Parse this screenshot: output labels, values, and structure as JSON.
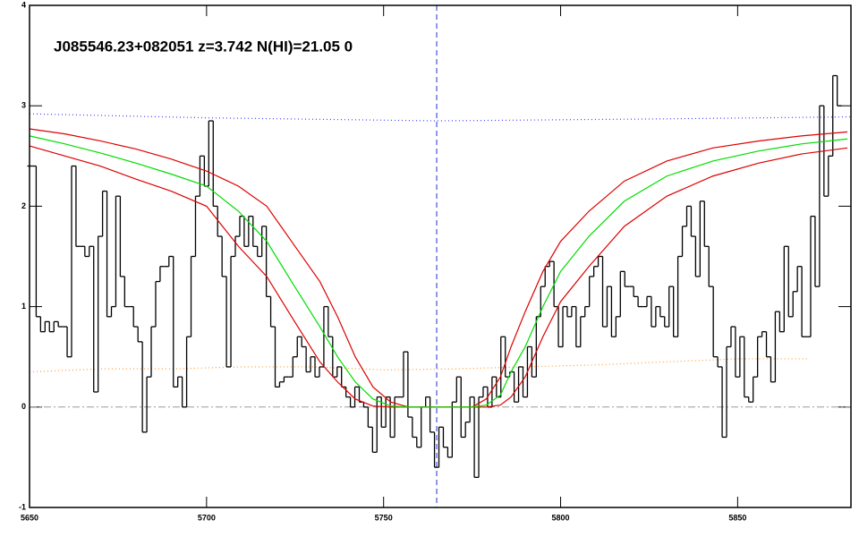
{
  "chart_data": {
    "type": "line",
    "title": "J085546.23+082051 z=3.742 N(HI)=21.05 0",
    "xlim": [
      5650,
      5882
    ],
    "ylim": [
      -1,
      4
    ],
    "xticks": [
      5650,
      5700,
      5750,
      5800,
      5850
    ],
    "yticks": [
      -1,
      0,
      1,
      2,
      3,
      4
    ],
    "vline": 5765,
    "vline_color": "#2030d0",
    "hline": 0,
    "hline_color": "#999999",
    "series": [
      {
        "style": "dotted",
        "color": "#4040ff",
        "x": [
          5650,
          5700,
          5765,
          5830,
          5882
        ],
        "values": [
          2.92,
          2.88,
          2.85,
          2.87,
          2.89
        ]
      },
      {
        "style": "dotted",
        "color": "#ff9933",
        "x": [
          5650,
          5670,
          5690,
          5710,
          5730,
          5750,
          5770,
          5790,
          5810,
          5830,
          5850,
          5870
        ],
        "values": [
          0.35,
          0.38,
          0.38,
          0.4,
          0.4,
          0.37,
          0.38,
          0.4,
          0.42,
          0.45,
          0.48,
          0.48
        ]
      },
      {
        "style": "step",
        "color": "#000000",
        "x": [
          5650,
          5651.25,
          5652.5,
          5653.75,
          5655,
          5656.25,
          5657.5,
          5658.75,
          5660,
          5661.25,
          5662.5,
          5663.75,
          5665,
          5666.25,
          5667.5,
          5668.75,
          5670,
          5671.25,
          5672.5,
          5673.75,
          5675,
          5676.25,
          5677.5,
          5678.75,
          5680,
          5681.25,
          5682.5,
          5683.75,
          5685,
          5686.25,
          5687.5,
          5688.75,
          5690,
          5691.25,
          5692.5,
          5693.75,
          5695,
          5696.25,
          5697.5,
          5698.75,
          5700,
          5701.25,
          5702.5,
          5703.75,
          5705,
          5706.25,
          5707.5,
          5708.75,
          5710,
          5711.25,
          5712.5,
          5713.75,
          5715,
          5716.25,
          5717.5,
          5718.75,
          5720,
          5721.25,
          5722.5,
          5723.75,
          5725,
          5726.25,
          5727.5,
          5728.75,
          5730,
          5731.25,
          5732.5,
          5733.75,
          5735,
          5736.25,
          5737.5,
          5738.75,
          5740,
          5741.25,
          5742.5,
          5743.75,
          5745,
          5746.25,
          5747.5,
          5748.75,
          5750,
          5751.25,
          5752.5,
          5753.75,
          5755,
          5756.25,
          5757.5,
          5758.75,
          5760,
          5761.25,
          5762.5,
          5763.75,
          5765,
          5766.25,
          5767.5,
          5768.75,
          5770,
          5771.25,
          5772.5,
          5773.75,
          5775,
          5776.25,
          5777.5,
          5778.75,
          5780,
          5781.25,
          5782.5,
          5783.75,
          5785,
          5786.25,
          5787.5,
          5788.75,
          5790,
          5791.25,
          5792.5,
          5793.75,
          5795,
          5796.25,
          5797.5,
          5798.75,
          5800,
          5801.25,
          5802.5,
          5803.75,
          5805,
          5806.25,
          5807.5,
          5808.75,
          5810,
          5811.25,
          5812.5,
          5813.75,
          5815,
          5816.25,
          5817.5,
          5818.75,
          5820,
          5821.25,
          5822.5,
          5823.75,
          5825,
          5826.25,
          5827.5,
          5828.75,
          5830,
          5831.25,
          5832.5,
          5833.75,
          5835,
          5836.25,
          5837.5,
          5838.75,
          5840,
          5841.25,
          5842.5,
          5843.75,
          5845,
          5846.25,
          5847.5,
          5848.75,
          5850,
          5851.25,
          5852.5,
          5853.75,
          5855,
          5856.25,
          5857.5,
          5858.75,
          5860,
          5861.25,
          5862.5,
          5863.75,
          5865,
          5866.25,
          5867.5,
          5868.75,
          5870,
          5871.25,
          5872.5,
          5873.75,
          5875,
          5876.25,
          5877.5,
          5878.75
        ],
        "values": [
          2.4,
          2.4,
          0.9,
          0.75,
          0.85,
          0.75,
          0.85,
          0.8,
          0.8,
          0.5,
          2.4,
          1.6,
          1.6,
          1.5,
          1.6,
          0.15,
          1.7,
          2.15,
          0.9,
          1.0,
          2.1,
          1.3,
          1.0,
          1.0,
          0.8,
          0.65,
          -0.25,
          0.3,
          0.8,
          1.25,
          1.4,
          1.4,
          1.5,
          0.2,
          0.3,
          0.0,
          0.7,
          1.5,
          2.1,
          2.5,
          2.2,
          2.85,
          2.0,
          1.7,
          1.3,
          0.4,
          1.5,
          1.7,
          1.9,
          1.6,
          1.9,
          1.6,
          1.5,
          1.8,
          1.1,
          0.8,
          0.2,
          0.25,
          0.3,
          0.3,
          0.5,
          0.7,
          0.6,
          0.35,
          0.5,
          0.3,
          0.4,
          1.0,
          0.7,
          0.3,
          0.4,
          0.2,
          0.1,
          0.0,
          0.2,
          0.05,
          0.0,
          -0.2,
          -0.45,
          0.1,
          -0.2,
          0.1,
          -0.3,
          0.1,
          0.1,
          0.55,
          -0.1,
          -0.3,
          -0.4,
          0.0,
          0.1,
          -0.25,
          -0.6,
          -0.2,
          -0.4,
          -0.5,
          0.05,
          0.3,
          -0.3,
          -0.15,
          0.1,
          -0.7,
          0.1,
          0.2,
          0.0,
          0.3,
          0.1,
          0.7,
          0.3,
          0.35,
          0.05,
          0.4,
          0.1,
          0.6,
          0.3,
          0.9,
          1.2,
          1.4,
          1.45,
          1.0,
          0.6,
          1.0,
          0.9,
          1.0,
          0.6,
          0.9,
          1.0,
          1.3,
          1.4,
          1.5,
          0.8,
          1.2,
          0.7,
          0.9,
          1.35,
          1.2,
          1.2,
          1.1,
          1.0,
          1.0,
          1.1,
          0.8,
          1.0,
          0.9,
          0.8,
          1.2,
          0.7,
          1.5,
          1.8,
          2.0,
          1.7,
          1.3,
          2.05,
          1.6,
          1.2,
          0.5,
          0.4,
          -0.3,
          0.6,
          0.8,
          0.3,
          0.7,
          0.1,
          0.05,
          0.3,
          0.7,
          0.75,
          0.5,
          0.25,
          0.95,
          0.75,
          1.6,
          0.9,
          1.15,
          1.4,
          0.7,
          0.7,
          1.9,
          1.2,
          3.0,
          2.1,
          2.5,
          3.3,
          3.0
        ]
      },
      {
        "style": "line",
        "color": "#dd0000",
        "x": [
          5650,
          5660,
          5670,
          5680,
          5690,
          5700,
          5709,
          5717,
          5724,
          5732,
          5737,
          5742,
          5747,
          5752,
          5757,
          5765,
          5775,
          5779,
          5783,
          5786,
          5790,
          5795,
          5800,
          5808,
          5818,
          5830,
          5843,
          5856,
          5868,
          5881
        ],
        "values": [
          2.77,
          2.72,
          2.65,
          2.57,
          2.47,
          2.35,
          2.2,
          2.0,
          1.65,
          1.25,
          0.9,
          0.5,
          0.2,
          0.05,
          0,
          0,
          0,
          0.08,
          0.3,
          0.6,
          0.95,
          1.35,
          1.65,
          1.95,
          2.25,
          2.45,
          2.58,
          2.65,
          2.7,
          2.74
        ]
      },
      {
        "style": "line",
        "color": "#dd0000",
        "x": [
          5650,
          5660,
          5670,
          5680,
          5690,
          5700,
          5709,
          5717,
          5724,
          5732,
          5737,
          5742,
          5747,
          5752,
          5757,
          5765,
          5775,
          5779,
          5783,
          5786,
          5790,
          5795,
          5800,
          5808,
          5818,
          5830,
          5843,
          5856,
          5868,
          5881
        ],
        "values": [
          2.6,
          2.5,
          2.4,
          2.27,
          2.15,
          2.0,
          1.6,
          1.3,
          0.9,
          0.45,
          0.25,
          0.08,
          0.01,
          0,
          0,
          0,
          0,
          0,
          0.02,
          0.1,
          0.3,
          0.7,
          1.05,
          1.4,
          1.8,
          2.1,
          2.3,
          2.43,
          2.52,
          2.58
        ]
      },
      {
        "style": "line",
        "color": "#00dd00",
        "x": [
          5650,
          5660,
          5670,
          5680,
          5690,
          5700,
          5709,
          5717,
          5724,
          5732,
          5737,
          5742,
          5747,
          5752,
          5757,
          5765,
          5775,
          5779,
          5783,
          5786,
          5790,
          5795,
          5800,
          5808,
          5818,
          5830,
          5843,
          5856,
          5868,
          5881
        ],
        "values": [
          2.7,
          2.62,
          2.53,
          2.43,
          2.32,
          2.2,
          1.95,
          1.65,
          1.25,
          0.8,
          0.5,
          0.25,
          0.08,
          0.01,
          0,
          0,
          0,
          0.02,
          0.12,
          0.35,
          0.6,
          1.0,
          1.35,
          1.7,
          2.05,
          2.3,
          2.45,
          2.55,
          2.62,
          2.67
        ]
      }
    ]
  }
}
